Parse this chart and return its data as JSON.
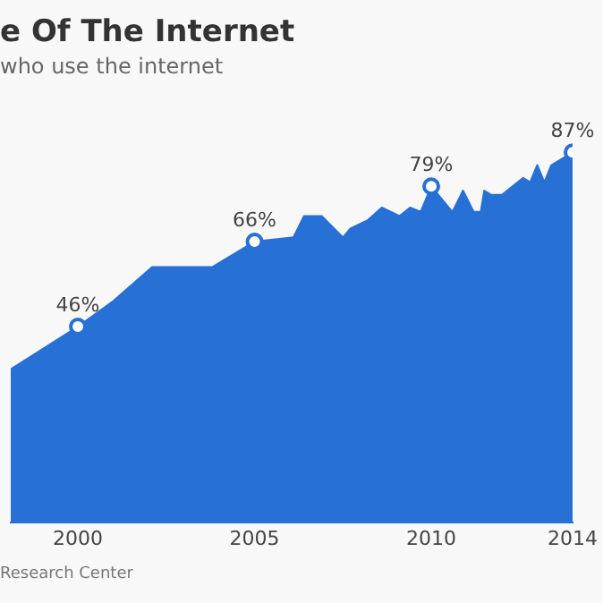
{
  "chart_data": {
    "type": "area",
    "title": "e Of The Internet",
    "subtitle": "who use the internet",
    "annotations": [
      "Research Center"
    ],
    "x": [
      1998.1,
      2000,
      2001,
      2002.1,
      2003.8,
      2005,
      2006.1,
      2006.4,
      2006.9,
      2007.5,
      2007.7,
      2008.2,
      2008.6,
      2009.1,
      2009.4,
      2009.7,
      2010,
      2010.6,
      2010.9,
      2011.2,
      2011.4,
      2011.5,
      2011.7,
      2012,
      2012.6,
      2012.8,
      2013,
      2013.2,
      2013.4,
      2014
    ],
    "series": [
      {
        "color": "#2770d6",
        "values": [
          36,
          46,
          52,
          60,
          60,
          66,
          67,
          72,
          72,
          67,
          69,
          71,
          74,
          72,
          74,
          73,
          79,
          73,
          78,
          73,
          73,
          78,
          77,
          77,
          81,
          80,
          84,
          80,
          84,
          87
        ],
        "value_labels": [
          null,
          "46%",
          null,
          null,
          null,
          "66%",
          null,
          null,
          null,
          null,
          null,
          null,
          null,
          null,
          null,
          null,
          "79%",
          null,
          null,
          null,
          null,
          null,
          null,
          null,
          null,
          null,
          null,
          null,
          null,
          "87%"
        ]
      }
    ],
    "xlim": [
      1998.1,
      2014
    ],
    "xticks": [
      2000,
      2005,
      2010,
      2014
    ],
    "tick_labels": "x",
    "legend": false
  }
}
